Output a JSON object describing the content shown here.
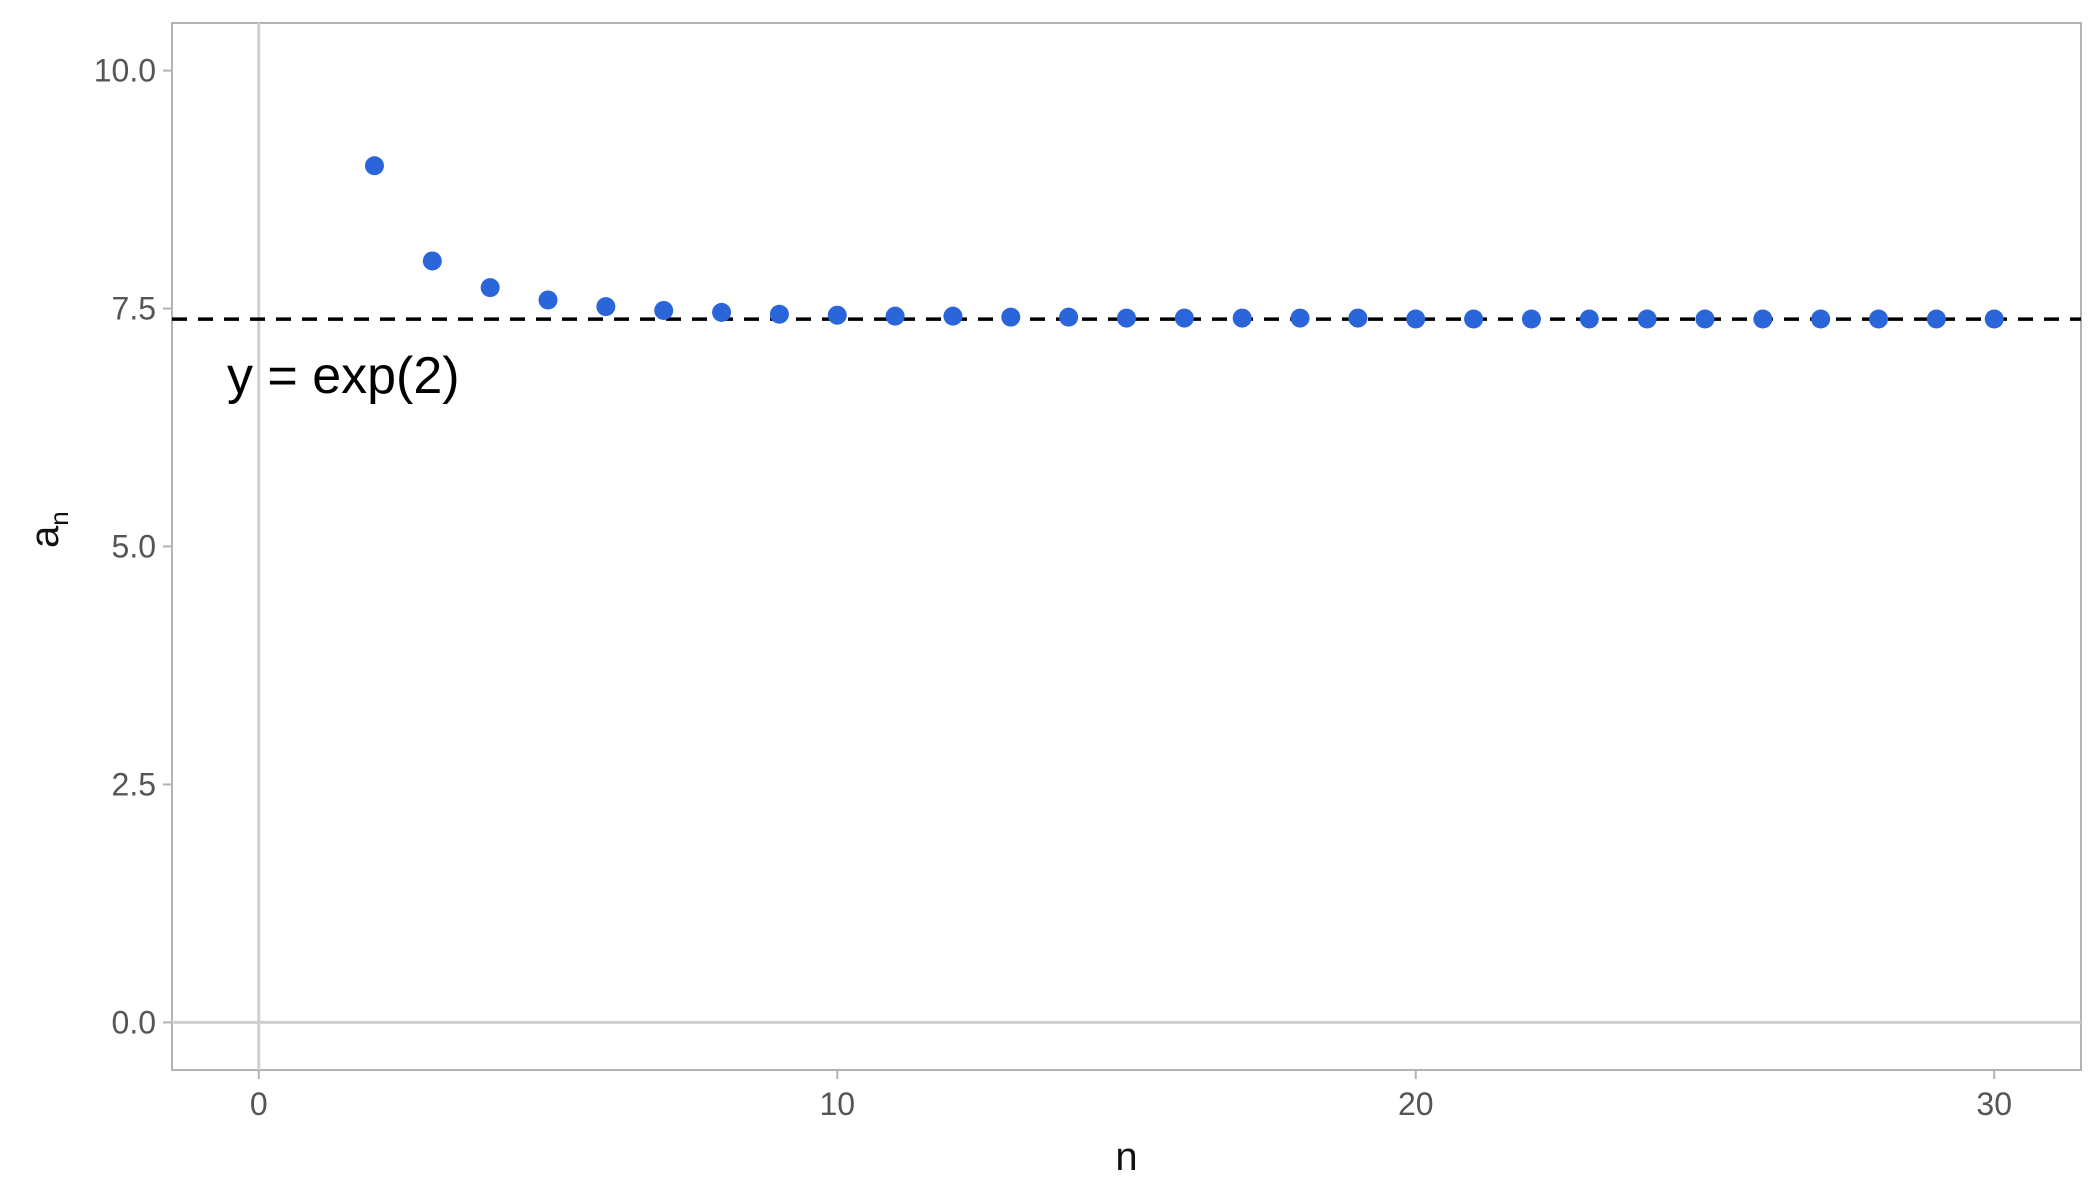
{
  "chart_data": {
    "type": "scatter",
    "title": "",
    "xlabel": "n",
    "ylabel": "a",
    "ylabel_subscript": "n",
    "xlim": [
      -1.5,
      31.5
    ],
    "ylim": [
      -0.5,
      10.5
    ],
    "x_ticks": [
      0,
      10,
      20,
      30
    ],
    "x_tick_labels": [
      "0",
      "10",
      "20",
      "30"
    ],
    "y_ticks": [
      0,
      2.5,
      5,
      7.5,
      10
    ],
    "y_tick_labels": [
      "0.0",
      "2.5",
      "5.0",
      "7.5",
      "10.0"
    ],
    "grid": false,
    "reference_lines": {
      "x": 0,
      "y": 0
    },
    "hline": {
      "y": 7.389,
      "style": "dashed",
      "color": "#000000"
    },
    "annotation": {
      "text": "y = exp(2)",
      "x": 1.7,
      "y": 6.8
    },
    "point_color": "#2a66d9",
    "x": [
      2,
      3,
      4,
      5,
      6,
      7,
      8,
      9,
      10,
      11,
      12,
      13,
      14,
      15,
      16,
      17,
      18,
      19,
      20,
      21,
      22,
      23,
      24,
      25,
      26,
      27,
      28,
      29,
      30
    ],
    "y": [
      9.0,
      8.0,
      7.72,
      7.59,
      7.52,
      7.48,
      7.46,
      7.44,
      7.43,
      7.42,
      7.42,
      7.41,
      7.41,
      7.4,
      7.4,
      7.4,
      7.4,
      7.4,
      7.39,
      7.39,
      7.39,
      7.39,
      7.39,
      7.39,
      7.39,
      7.39,
      7.39,
      7.39,
      7.39
    ]
  }
}
